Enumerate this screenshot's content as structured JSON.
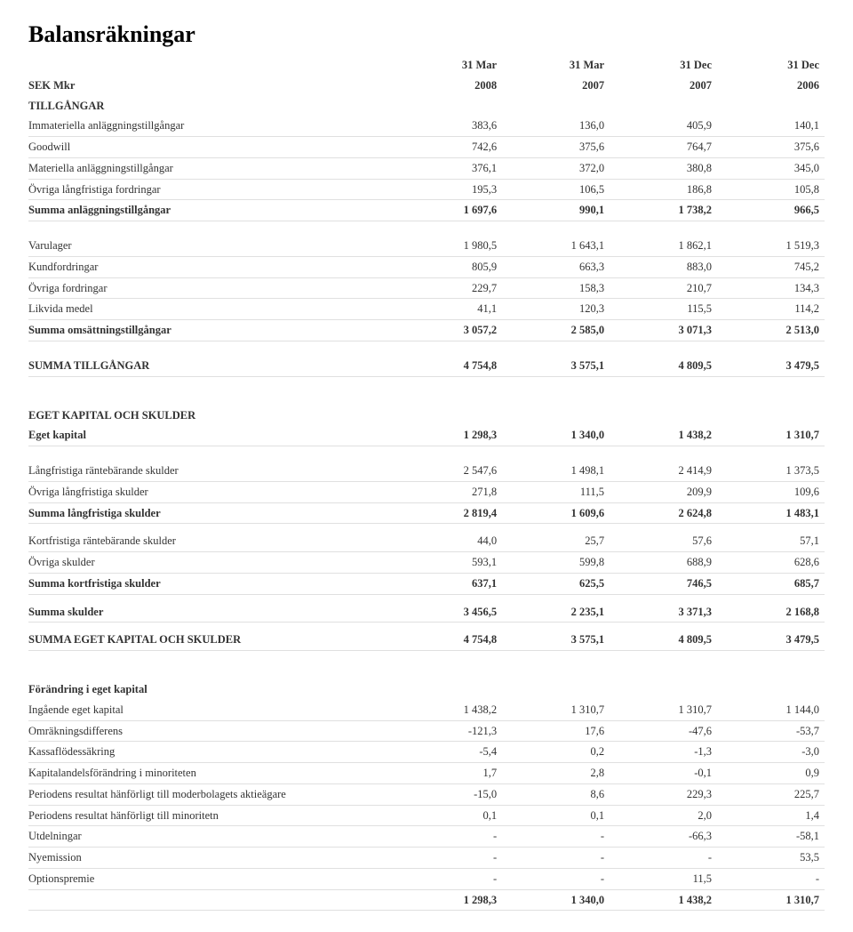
{
  "title": "Balansräkningar",
  "header": {
    "col0": "SEK Mkr",
    "col1_top": "31 Mar",
    "col1_bot": "2008",
    "col2_top": "31 Mar",
    "col2_bot": "2007",
    "col3_top": "31 Dec",
    "col3_bot": "2007",
    "col4_top": "31 Dec",
    "col4_bot": "2006"
  },
  "sections": {
    "tillgangar": "TILLGÅNGAR",
    "eget_kapital_skulder": "EGET KAPITAL OCH SKULDER",
    "forandring": "Förändring i eget kapital"
  },
  "rows": {
    "immateriella": {
      "label": "Immateriella anläggningstillgångar",
      "v": [
        "383,6",
        "136,0",
        "405,9",
        "140,1"
      ]
    },
    "goodwill": {
      "label": "Goodwill",
      "v": [
        "742,6",
        "375,6",
        "764,7",
        "375,6"
      ]
    },
    "materiella": {
      "label": "Materiella anläggningstillgångar",
      "v": [
        "376,1",
        "372,0",
        "380,8",
        "345,0"
      ]
    },
    "ovriga_lf_ford": {
      "label": "Övriga långfristiga fordringar",
      "v": [
        "195,3",
        "106,5",
        "186,8",
        "105,8"
      ]
    },
    "summa_anl": {
      "label": "Summa anläggningstillgångar",
      "v": [
        "1 697,6",
        "990,1",
        "1 738,2",
        "966,5"
      ]
    },
    "varulager": {
      "label": "Varulager",
      "v": [
        "1 980,5",
        "1 643,1",
        "1 862,1",
        "1 519,3"
      ]
    },
    "kundford": {
      "label": "Kundfordringar",
      "v": [
        "805,9",
        "663,3",
        "883,0",
        "745,2"
      ]
    },
    "ovriga_ford": {
      "label": "Övriga fordringar",
      "v": [
        "229,7",
        "158,3",
        "210,7",
        "134,3"
      ]
    },
    "likvida": {
      "label": "Likvida medel",
      "v": [
        "41,1",
        "120,3",
        "115,5",
        "114,2"
      ]
    },
    "summa_oms": {
      "label": "Summa omsättningstillgångar",
      "v": [
        "3 057,2",
        "2 585,0",
        "3 071,3",
        "2 513,0"
      ]
    },
    "summa_tillg": {
      "label": "SUMMA TILLGÅNGAR",
      "v": [
        "4 754,8",
        "3 575,1",
        "4 809,5",
        "3 479,5"
      ]
    },
    "eget_kapital": {
      "label": "Eget kapital",
      "v": [
        "1 298,3",
        "1 340,0",
        "1 438,2",
        "1 310,7"
      ]
    },
    "lf_rantebar": {
      "label": "Långfristiga räntebärande skulder",
      "v": [
        "2 547,6",
        "1 498,1",
        "2 414,9",
        "1 373,5"
      ]
    },
    "ovriga_lf_sk": {
      "label": "Övriga långfristiga skulder",
      "v": [
        "271,8",
        "111,5",
        "209,9",
        "109,6"
      ]
    },
    "summa_lf_sk": {
      "label": "Summa långfristiga skulder",
      "v": [
        "2 819,4",
        "1 609,6",
        "2 624,8",
        "1 483,1"
      ]
    },
    "kf_rantebar": {
      "label": "Kortfristiga räntebärande skulder",
      "v": [
        "44,0",
        "25,7",
        "57,6",
        "57,1"
      ]
    },
    "ovriga_sk": {
      "label": "Övriga skulder",
      "v": [
        "593,1",
        "599,8",
        "688,9",
        "628,6"
      ]
    },
    "summa_kf_sk": {
      "label": "Summa kortfristiga skulder",
      "v": [
        "637,1",
        "625,5",
        "746,5",
        "685,7"
      ]
    },
    "summa_skulder": {
      "label": "Summa skulder",
      "v": [
        "3 456,5",
        "2 235,1",
        "3 371,3",
        "2 168,8"
      ]
    },
    "summa_ek_sk": {
      "label": "SUMMA EGET KAPITAL OCH SKULDER",
      "v": [
        "4 754,8",
        "3 575,1",
        "4 809,5",
        "3 479,5"
      ]
    },
    "ingaende": {
      "label": "Ingående eget kapital",
      "v": [
        "1 438,2",
        "1 310,7",
        "1 310,7",
        "1 144,0"
      ]
    },
    "omrakning": {
      "label": "Omräkningsdifferens",
      "v": [
        "-121,3",
        "17,6",
        "-47,6",
        "-53,7"
      ]
    },
    "kassaflode": {
      "label": "Kassaflödessäkring",
      "v": [
        "-5,4",
        "0,2",
        "-1,3",
        "-3,0"
      ]
    },
    "kapitalandel": {
      "label": "Kapitalandelsförändring i minoriteten",
      "v": [
        "1,7",
        "2,8",
        "-0,1",
        "0,9"
      ]
    },
    "period_moder": {
      "label": "Periodens resultat hänförligt till moderbolagets aktieägare",
      "v": [
        "-15,0",
        "8,6",
        "229,3",
        "225,7"
      ]
    },
    "period_min": {
      "label": "Periodens resultat hänförligt till minoritetn",
      "v": [
        "0,1",
        "0,1",
        "2,0",
        "1,4"
      ]
    },
    "utdelningar": {
      "label": "Utdelningar",
      "v": [
        "-",
        "-",
        "-66,3",
        "-58,1"
      ]
    },
    "nyemission": {
      "label": "Nyemission",
      "v": [
        "-",
        "-",
        "-",
        "53,5"
      ]
    },
    "optionspremie": {
      "label": "Optionspremie",
      "v": [
        "-",
        "-",
        "11,5",
        "-"
      ]
    },
    "forandring_sum": {
      "label": "",
      "v": [
        "1 298,3",
        "1 340,0",
        "1 438,2",
        "1 310,7"
      ]
    }
  }
}
